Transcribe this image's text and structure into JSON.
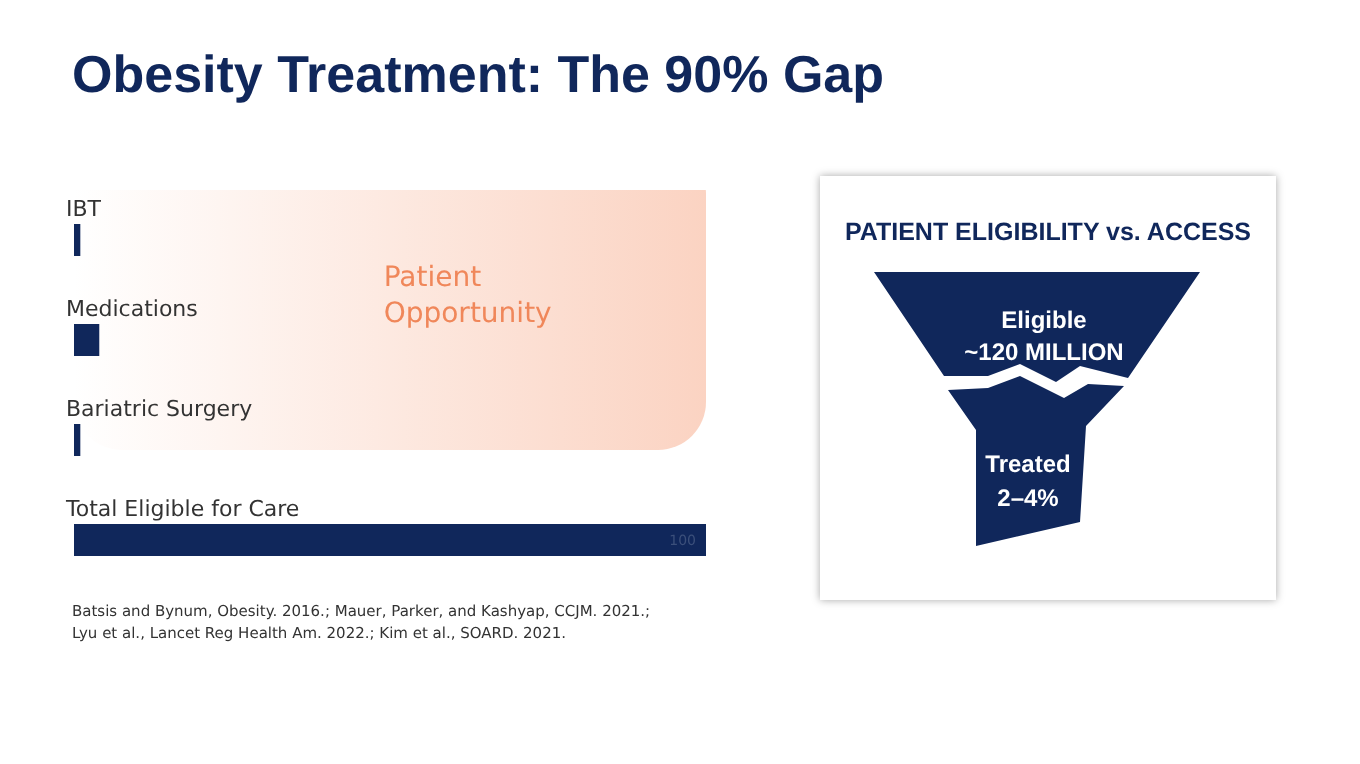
{
  "chart_data": [
    {
      "type": "bar",
      "orientation": "horizontal",
      "xlim": [
        0,
        100
      ],
      "tick_labels": "y",
      "title": "Obesity Treatment: The 90% Gap",
      "categories": [
        "IBT",
        "Medications",
        "Bariatric Surgery",
        "Total Eligible for Care"
      ],
      "values": [
        1,
        4,
        1,
        100
      ],
      "color": "#10275b",
      "value_labels": [
        null,
        null,
        null,
        "100"
      ],
      "bands": [
        {
          "axis": "x",
          "from": 0,
          "to": 100,
          "label": "Patient Opportunity",
          "color": "#fbd3c2"
        }
      ],
      "annotations": [
        "Batsis and Bynum, Obesity. 2016.; Mauer, Parker, and Kashyap, CCJM. 2021.; Lyu et al., Lancet Reg Health Am. 2022.; Kim et al., SOARD. 2021."
      ]
    },
    {
      "type": "other",
      "title": "PATIENT ELIGIBILITY vs. ACCESS",
      "annotations": [
        "Eligible",
        "~120 MILLION",
        "Treated",
        "2–4%"
      ]
    }
  ]
}
